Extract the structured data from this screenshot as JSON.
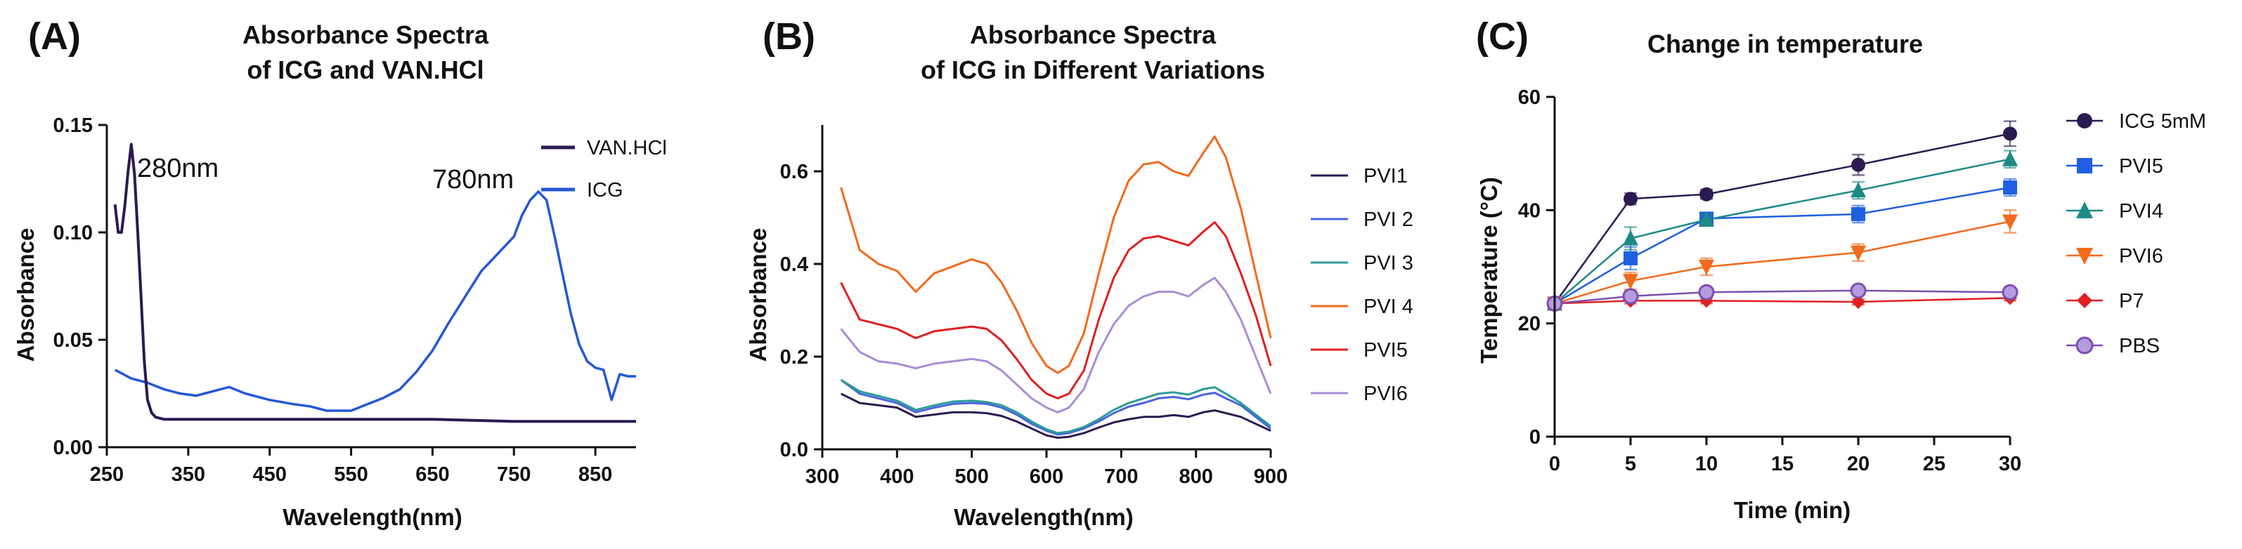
{
  "chart_data": [
    {
      "panel": "(A)",
      "type": "line",
      "title": [
        "Absorbance Spectra",
        "of ICG and  VAN.HCl"
      ],
      "xlabel": "Wavelength(nm)",
      "ylabel": "Absorbance",
      "xlim": [
        250,
        900
      ],
      "ylim": [
        0,
        0.15
      ],
      "xticks": [
        "250",
        "350",
        "450",
        "550",
        "650",
        "750",
        "850"
      ],
      "yticks": [
        "0.00",
        "0.05",
        "0.10",
        "0.15"
      ],
      "annotations": [
        "280nm",
        "780nm"
      ],
      "series": [
        {
          "name": "VAN.HCl",
          "color": "#2b1a52",
          "x": [
            260,
            264,
            268,
            272,
            276,
            280,
            284,
            288,
            292,
            296,
            300,
            305,
            310,
            320,
            340,
            380,
            450,
            550,
            650,
            750,
            850,
            900
          ],
          "y": [
            0.113,
            0.1,
            0.1,
            0.112,
            0.128,
            0.141,
            0.127,
            0.1,
            0.07,
            0.04,
            0.022,
            0.016,
            0.014,
            0.013,
            0.013,
            0.013,
            0.013,
            0.013,
            0.013,
            0.012,
            0.012,
            0.012
          ]
        },
        {
          "name": "ICG",
          "color": "#2557d6",
          "x": [
            260,
            280,
            300,
            320,
            340,
            360,
            380,
            400,
            420,
            450,
            480,
            500,
            520,
            550,
            570,
            590,
            610,
            630,
            650,
            670,
            690,
            710,
            730,
            750,
            760,
            770,
            780,
            790,
            800,
            810,
            820,
            830,
            840,
            850,
            860,
            870,
            880,
            890,
            900
          ],
          "y": [
            0.036,
            0.032,
            0.03,
            0.027,
            0.025,
            0.024,
            0.026,
            0.028,
            0.025,
            0.022,
            0.02,
            0.019,
            0.017,
            0.017,
            0.02,
            0.023,
            0.027,
            0.035,
            0.045,
            0.058,
            0.07,
            0.082,
            0.09,
            0.098,
            0.108,
            0.115,
            0.119,
            0.115,
            0.098,
            0.08,
            0.062,
            0.048,
            0.04,
            0.037,
            0.036,
            0.022,
            0.034,
            0.033,
            0.033
          ]
        }
      ]
    },
    {
      "panel": "(B)",
      "type": "line",
      "title": [
        "Absorbance  Spectra",
        "of  ICG in Different Variations"
      ],
      "xlabel": "Wavelength(nm)",
      "ylabel": "Absorbance",
      "xlim": [
        300,
        900
      ],
      "ylim": [
        0,
        0.7
      ],
      "xticks": [
        "300",
        "400",
        "500",
        "600",
        "700",
        "800",
        "900"
      ],
      "yticks": [
        "0.0",
        "0.2",
        "0.4",
        "0.6"
      ],
      "x": [
        325,
        350,
        375,
        400,
        425,
        450,
        475,
        500,
        520,
        540,
        560,
        580,
        600,
        615,
        630,
        650,
        670,
        690,
        710,
        730,
        750,
        770,
        790,
        810,
        825,
        840,
        860,
        880,
        900
      ],
      "series": [
        {
          "name": "PVI1",
          "color": "#2b1a52",
          "values": [
            0.12,
            0.1,
            0.095,
            0.09,
            0.07,
            0.075,
            0.08,
            0.08,
            0.078,
            0.072,
            0.06,
            0.045,
            0.03,
            0.025,
            0.027,
            0.035,
            0.047,
            0.058,
            0.065,
            0.07,
            0.07,
            0.074,
            0.07,
            0.08,
            0.084,
            0.078,
            0.07,
            0.055,
            0.04
          ]
        },
        {
          "name": "PVI 2",
          "color": "#4a63e0",
          "values": [
            0.15,
            0.12,
            0.11,
            0.1,
            0.08,
            0.09,
            0.098,
            0.1,
            0.098,
            0.09,
            0.075,
            0.055,
            0.04,
            0.032,
            0.035,
            0.045,
            0.06,
            0.078,
            0.092,
            0.1,
            0.11,
            0.113,
            0.108,
            0.118,
            0.122,
            0.11,
            0.095,
            0.07,
            0.045
          ]
        },
        {
          "name": "PVI 3",
          "color": "#2a9c98",
          "values": [
            0.15,
            0.125,
            0.115,
            0.105,
            0.085,
            0.095,
            0.103,
            0.105,
            0.102,
            0.095,
            0.08,
            0.06,
            0.043,
            0.035,
            0.038,
            0.048,
            0.065,
            0.085,
            0.1,
            0.11,
            0.12,
            0.123,
            0.118,
            0.13,
            0.134,
            0.12,
            0.1,
            0.075,
            0.05
          ]
        },
        {
          "name": "PVI 4",
          "color": "#f26a1b",
          "values": [
            0.565,
            0.43,
            0.4,
            0.385,
            0.34,
            0.38,
            0.395,
            0.41,
            0.4,
            0.36,
            0.3,
            0.23,
            0.18,
            0.165,
            0.18,
            0.25,
            0.38,
            0.5,
            0.58,
            0.615,
            0.62,
            0.6,
            0.59,
            0.64,
            0.675,
            0.63,
            0.52,
            0.38,
            0.24
          ]
        },
        {
          "name": "PVI5",
          "color": "#e11f1f",
          "values": [
            0.36,
            0.28,
            0.27,
            0.26,
            0.24,
            0.255,
            0.26,
            0.265,
            0.26,
            0.235,
            0.195,
            0.15,
            0.12,
            0.11,
            0.12,
            0.17,
            0.28,
            0.37,
            0.43,
            0.455,
            0.46,
            0.45,
            0.44,
            0.47,
            0.49,
            0.46,
            0.38,
            0.29,
            0.18
          ]
        },
        {
          "name": "PVI6",
          "color": "#a98ed4",
          "values": [
            0.26,
            0.21,
            0.19,
            0.185,
            0.175,
            0.185,
            0.19,
            0.195,
            0.19,
            0.17,
            0.14,
            0.11,
            0.09,
            0.08,
            0.09,
            0.13,
            0.21,
            0.27,
            0.31,
            0.33,
            0.34,
            0.34,
            0.33,
            0.355,
            0.37,
            0.34,
            0.28,
            0.2,
            0.12
          ]
        }
      ]
    },
    {
      "panel": "(C)",
      "type": "line",
      "title": [
        "Change in temperature"
      ],
      "xlabel": "Time (min)",
      "ylabel": "Temperature (°C)",
      "xlim": [
        0,
        30
      ],
      "ylim": [
        0,
        60
      ],
      "xticks": [
        "0",
        "5",
        "10",
        "15",
        "20",
        "25",
        "30"
      ],
      "yticks": [
        "0",
        "20",
        "40",
        "60"
      ],
      "x": [
        0,
        5,
        10,
        20,
        30
      ],
      "series": [
        {
          "name": "ICG 5mM",
          "color": "#2b1a52",
          "marker": "circle",
          "values": [
            23.5,
            42.0,
            42.8,
            48.0,
            53.5
          ],
          "errors": [
            1.0,
            1.0,
            0.8,
            1.8,
            2.2
          ]
        },
        {
          "name": "PVI5",
          "color": "#1f5fe0",
          "marker": "square",
          "values": [
            23.5,
            31.5,
            38.5,
            39.3,
            44.0
          ],
          "errors": [
            1.0,
            2.0,
            1.0,
            1.5,
            1.5
          ]
        },
        {
          "name": "PVI4",
          "color": "#1e8a86",
          "marker": "triangle-up",
          "values": [
            23.5,
            35.0,
            38.3,
            43.5,
            49.0
          ],
          "errors": [
            1.0,
            2.0,
            1.0,
            1.5,
            1.5
          ]
        },
        {
          "name": "PVI6",
          "color": "#f26a1b",
          "marker": "triangle-down",
          "values": [
            23.5,
            27.5,
            30.0,
            32.5,
            38.0
          ],
          "errors": [
            1.0,
            1.5,
            1.5,
            1.5,
            2.0
          ]
        },
        {
          "name": "P7",
          "color": "#e11f1f",
          "marker": "diamond",
          "values": [
            23.5,
            24.0,
            24.0,
            23.8,
            24.5
          ],
          "errors": [
            0.5,
            0.5,
            0.5,
            0.5,
            0.5
          ]
        },
        {
          "name": "PBS",
          "color": "#7b4fb0",
          "marker": "circle-filled-light",
          "values": [
            23.5,
            24.8,
            25.5,
            25.8,
            25.5
          ],
          "errors": [
            0.8,
            0.8,
            0.8,
            0.8,
            0.8
          ]
        }
      ]
    }
  ]
}
